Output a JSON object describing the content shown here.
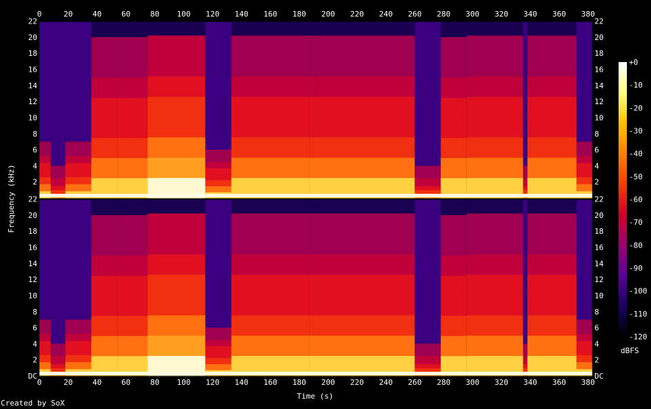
{
  "chart_data": {
    "type": "heatmap",
    "subtype": "spectrogram",
    "channels": 2,
    "xlabel": "Time (s)",
    "ylabel": "Frequency (kHz)",
    "xlim": [
      0,
      383
    ],
    "ylim_khz": [
      0,
      22.05
    ],
    "x_ticks": [
      "0",
      "20",
      "40",
      "60",
      "80",
      "100",
      "120",
      "140",
      "160",
      "180",
      "200",
      "220",
      "240",
      "260",
      "280",
      "300",
      "320",
      "340",
      "360",
      "380"
    ],
    "y_ticks_top": [
      "22",
      "20",
      "18",
      "16",
      "14",
      "12",
      "10",
      "8",
      "6",
      "4",
      "2"
    ],
    "y_ticks_bottom": [
      "22",
      "20",
      "18",
      "16",
      "14",
      "12",
      "10",
      "8",
      "6",
      "4",
      "2",
      "DC"
    ],
    "colorbar": {
      "label": "dBFS",
      "ticks": [
        "+0",
        "-10",
        "-20",
        "-30",
        "-40",
        "-50",
        "-60",
        "-70",
        "-80",
        "-90",
        "-100",
        "-110",
        "-120"
      ],
      "range": [
        -120,
        0
      ],
      "stops": [
        "#000000",
        "#1a0060",
        "#5a009a",
        "#9a0070",
        "#d0002a",
        "#f04000",
        "#ff8000",
        "#ffc000",
        "#ffff80",
        "#ffffff"
      ]
    },
    "segments": [
      {
        "start": 0,
        "end": 8,
        "cutoff_khz": 7,
        "level": 0.55
      },
      {
        "start": 8,
        "end": 18,
        "cutoff_khz": 4,
        "level": 0.35
      },
      {
        "start": 18,
        "end": 36,
        "cutoff_khz": 7,
        "level": 0.6
      },
      {
        "start": 36,
        "end": 54,
        "cutoff_khz": 20,
        "level": 0.72
      },
      {
        "start": 54,
        "end": 75,
        "cutoff_khz": 20,
        "level": 0.78
      },
      {
        "start": 75,
        "end": 115,
        "cutoff_khz": 20.2,
        "level": 0.85
      },
      {
        "start": 115,
        "end": 133,
        "cutoff_khz": 6,
        "level": 0.62
      },
      {
        "start": 133,
        "end": 187,
        "cutoff_khz": 20.2,
        "level": 0.82
      },
      {
        "start": 187,
        "end": 260,
        "cutoff_khz": 20.2,
        "level": 0.8
      },
      {
        "start": 260,
        "end": 278,
        "cutoff_khz": 4,
        "level": 0.4
      },
      {
        "start": 278,
        "end": 296,
        "cutoff_khz": 20,
        "level": 0.62
      },
      {
        "start": 296,
        "end": 335,
        "cutoff_khz": 20.2,
        "level": 0.82
      },
      {
        "start": 335,
        "end": 338,
        "cutoff_khz": 4,
        "level": 0.4
      },
      {
        "start": 338,
        "end": 372,
        "cutoff_khz": 20.2,
        "level": 0.82
      },
      {
        "start": 372,
        "end": 383,
        "cutoff_khz": 7,
        "level": 0.6
      }
    ]
  },
  "footer": {
    "credit": "Created by SoX"
  }
}
